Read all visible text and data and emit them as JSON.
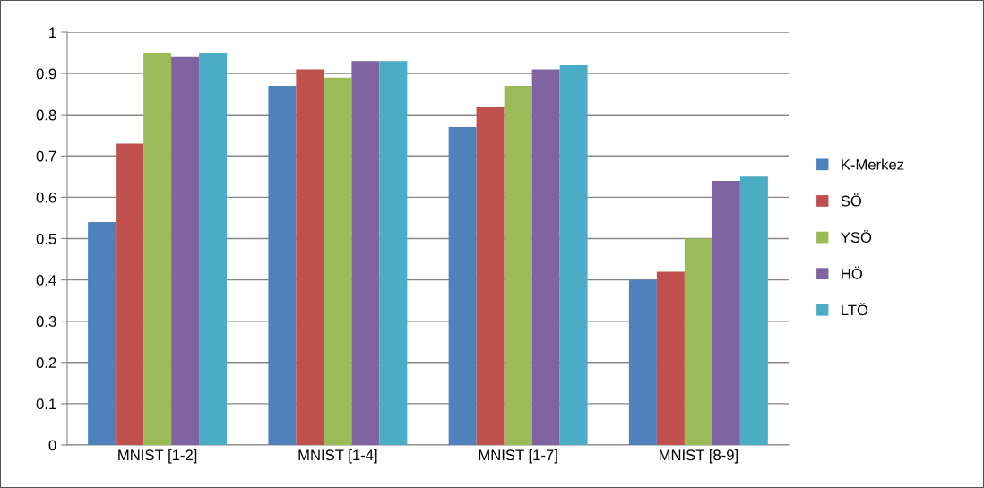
{
  "chart_data": {
    "type": "bar",
    "categories": [
      "MNIST [1-2]",
      "MNIST [1-4]",
      "MNIST [1-7]",
      "MNIST [8-9]"
    ],
    "series": [
      {
        "name": "K-Merkez",
        "color": "#4f81bd",
        "values": [
          0.54,
          0.87,
          0.77,
          0.4
        ]
      },
      {
        "name": "SÖ",
        "color": "#c0504d",
        "values": [
          0.73,
          0.91,
          0.82,
          0.42
        ]
      },
      {
        "name": "YSÖ",
        "color": "#9bbb59",
        "values": [
          0.95,
          0.89,
          0.87,
          0.5
        ]
      },
      {
        "name": "HÖ",
        "color": "#8064a2",
        "values": [
          0.94,
          0.93,
          0.91,
          0.64
        ]
      },
      {
        "name": "LTÖ",
        "color": "#4bacc6",
        "values": [
          0.95,
          0.93,
          0.92,
          0.65
        ]
      }
    ],
    "ylim": [
      0,
      1
    ],
    "yticks": [
      0,
      0.1,
      0.2,
      0.3,
      0.4,
      0.5,
      0.6,
      0.7,
      0.8,
      0.9,
      1
    ],
    "grid": "y",
    "legend": "right"
  }
}
